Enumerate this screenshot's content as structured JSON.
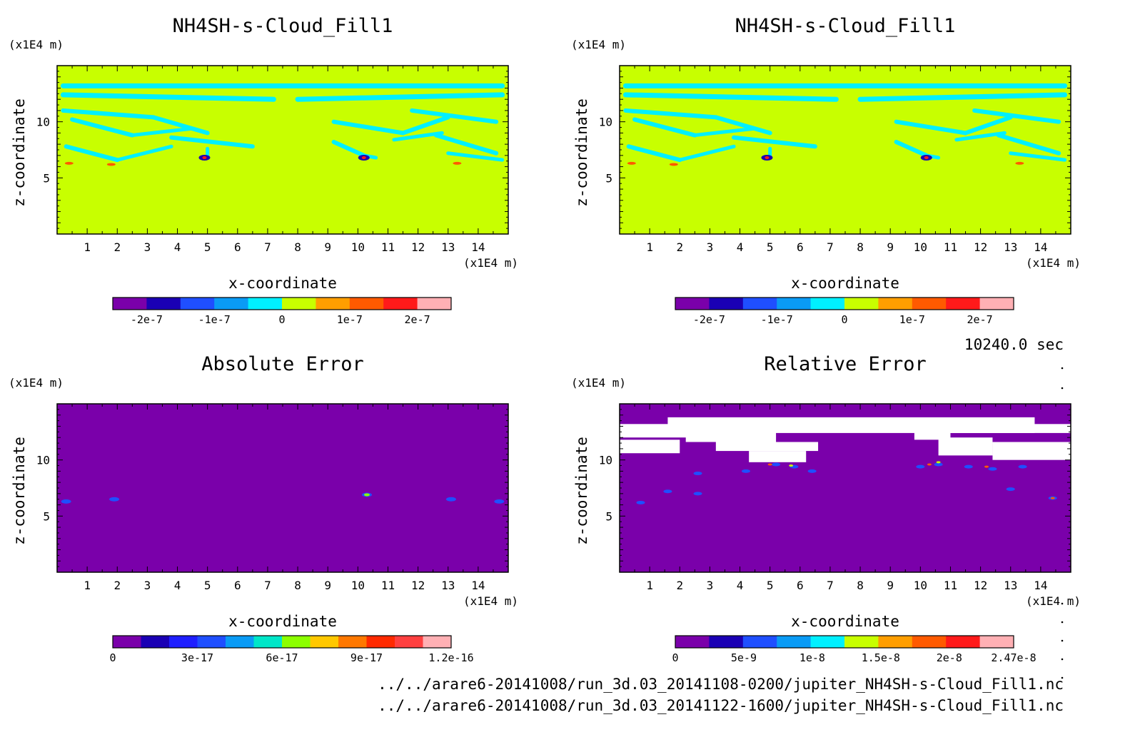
{
  "timestamp": "10240.0 sec",
  "file_paths": [
    "../../arare6-20141008/run_3d.03_20141108-0200/jupiter_NH4SH-s-Cloud_Fill1.nc",
    "../../arare6-20141008/run_3d.03_20141122-1600/jupiter_NH4SH-s-Cloud_Fill1.nc"
  ],
  "chart_data": [
    {
      "type": "heatmap",
      "title": "NH4SH-s-Cloud_Fill1",
      "xlabel": "x-coordinate",
      "ylabel": "z-coordinate",
      "x_unit": "(x1E4 m)",
      "y_unit": "(x1E4 m)",
      "xlim": [
        0,
        15
      ],
      "ylim": [
        0,
        15
      ],
      "x_ticks": [
        "1",
        "2",
        "3",
        "4",
        "5",
        "6",
        "7",
        "8",
        "9",
        "10",
        "11",
        "12",
        "13",
        "14"
      ],
      "y_ticks": [
        "5",
        "10"
      ],
      "colorbar": {
        "colors": [
          "#7a00aa",
          "#1a00b4",
          "#1f4fff",
          "#0a9bf5",
          "#00f0ff",
          "#c8ff00",
          "#ff9e00",
          "#ff5a00",
          "#ff1a1a",
          "#ffb0b4"
        ],
        "tick_labels": [
          "-2e-7",
          "-1e-7",
          "0",
          "1e-7",
          "2e-7"
        ],
        "tick_values": [
          -2e-07,
          -1e-07,
          0,
          1e-07,
          2e-07
        ],
        "range": [
          -2.5e-07,
          2.5e-07
        ]
      },
      "background_color": "#c8ff00",
      "feature_color": "#00f0ff"
    },
    {
      "type": "heatmap",
      "title": "NH4SH-s-Cloud_Fill1",
      "xlabel": "x-coordinate",
      "ylabel": "z-coordinate",
      "x_unit": "(x1E4 m)",
      "y_unit": "(x1E4 m)",
      "xlim": [
        0,
        15
      ],
      "ylim": [
        0,
        15
      ],
      "x_ticks": [
        "1",
        "2",
        "3",
        "4",
        "5",
        "6",
        "7",
        "8",
        "9",
        "10",
        "11",
        "12",
        "13",
        "14"
      ],
      "y_ticks": [
        "5",
        "10"
      ],
      "colorbar": {
        "colors": [
          "#7a00aa",
          "#1a00b4",
          "#1f4fff",
          "#0a9bf5",
          "#00f0ff",
          "#c8ff00",
          "#ff9e00",
          "#ff5a00",
          "#ff1a1a",
          "#ffb0b4"
        ],
        "tick_labels": [
          "-2e-7",
          "-1e-7",
          "0",
          "1e-7",
          "2e-7"
        ],
        "tick_values": [
          -2e-07,
          -1e-07,
          0,
          1e-07,
          2e-07
        ],
        "range": [
          -2.5e-07,
          2.5e-07
        ]
      },
      "background_color": "#c8ff00",
      "feature_color": "#00f0ff"
    },
    {
      "type": "heatmap",
      "title": "Absolute Error",
      "xlabel": "x-coordinate",
      "ylabel": "z-coordinate",
      "x_unit": "(x1E4 m)",
      "y_unit": "(x1E4 m)",
      "xlim": [
        0,
        15
      ],
      "ylim": [
        0,
        15
      ],
      "x_ticks": [
        "1",
        "2",
        "3",
        "4",
        "5",
        "6",
        "7",
        "8",
        "9",
        "10",
        "11",
        "12",
        "13",
        "14"
      ],
      "y_ticks": [
        "5",
        "10"
      ],
      "colorbar": {
        "colors": [
          "#7a00aa",
          "#1a00b4",
          "#1f1fff",
          "#1f4fff",
          "#0a9bf5",
          "#00e6c8",
          "#8cff00",
          "#ffc800",
          "#ff7800",
          "#ff2a00",
          "#ff4040",
          "#ffb0b4"
        ],
        "tick_labels": [
          "0",
          "3e-17",
          "6e-17",
          "9e-17",
          "1.2e-16"
        ],
        "tick_values": [
          0,
          3e-17,
          6e-17,
          9e-17,
          1.2e-16
        ],
        "range": [
          0,
          1.2e-16
        ]
      },
      "background_color": "#7a00aa"
    },
    {
      "type": "heatmap",
      "title": "Relative Error",
      "xlabel": "x-coordinate",
      "ylabel": "z-coordinate",
      "x_unit": "(x1E4 m)",
      "y_unit": "(x1E4 m)",
      "xlim": [
        0,
        15
      ],
      "ylim": [
        0,
        15
      ],
      "x_ticks": [
        "1",
        "2",
        "3",
        "4",
        "5",
        "6",
        "7",
        "8",
        "9",
        "10",
        "11",
        "12",
        "13",
        "14"
      ],
      "y_ticks": [
        "5",
        "10"
      ],
      "colorbar": {
        "colors": [
          "#7a00aa",
          "#1a00b4",
          "#1f4fff",
          "#0a9bf5",
          "#00f0ff",
          "#c8ff00",
          "#ff9e00",
          "#ff5a00",
          "#ff1a1a",
          "#ffb0b4"
        ],
        "tick_labels": [
          "0",
          "5e-9",
          "1e-8",
          "1.5e-8",
          "2e-8",
          "2.47e-8"
        ],
        "tick_values": [
          0,
          5e-09,
          1e-08,
          1.5e-08,
          2e-08,
          2.47e-08
        ],
        "range": [
          0,
          2.47e-08
        ]
      },
      "background_color": "#7a00aa",
      "masked_color": "#ffffff"
    }
  ]
}
